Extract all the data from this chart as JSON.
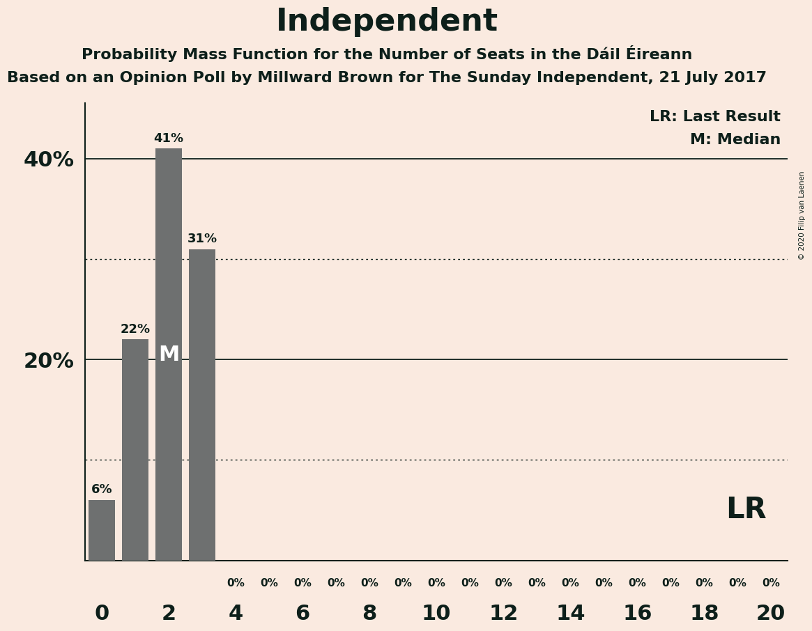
{
  "title": "Independent",
  "subtitle1": "Probability Mass Function for the Number of Seats in the Dáil Éireann",
  "subtitle2": "Based on an Opinion Poll by Millward Brown for The Sunday Independent, 21 July 2017",
  "copyright": "© 2020 Filip van Laenen",
  "seats": [
    0,
    1,
    2,
    3,
    4,
    5,
    6,
    7,
    8,
    9,
    10,
    11,
    12,
    13,
    14,
    15,
    16,
    17,
    18,
    19,
    20
  ],
  "probabilities": [
    0.06,
    0.22,
    0.41,
    0.31,
    0.0,
    0.0,
    0.0,
    0.0,
    0.0,
    0.0,
    0.0,
    0.0,
    0.0,
    0.0,
    0.0,
    0.0,
    0.0,
    0.0,
    0.0,
    0.0,
    0.0
  ],
  "median": 2,
  "bar_color": "#6e7070",
  "background_color": "#faeae0",
  "text_color": "#0d1f1a",
  "legend_lr": "LR: Last Result",
  "legend_m": "M: Median",
  "ylabel_ticks": [
    0.2,
    0.4
  ],
  "ylabel_labels": [
    "20%",
    "40%"
  ],
  "solid_lines": [
    0.2,
    0.4
  ],
  "dotted_lines": [
    0.1,
    0.3
  ],
  "xlim": [
    -0.5,
    20.5
  ],
  "ylim": [
    0,
    0.455
  ]
}
